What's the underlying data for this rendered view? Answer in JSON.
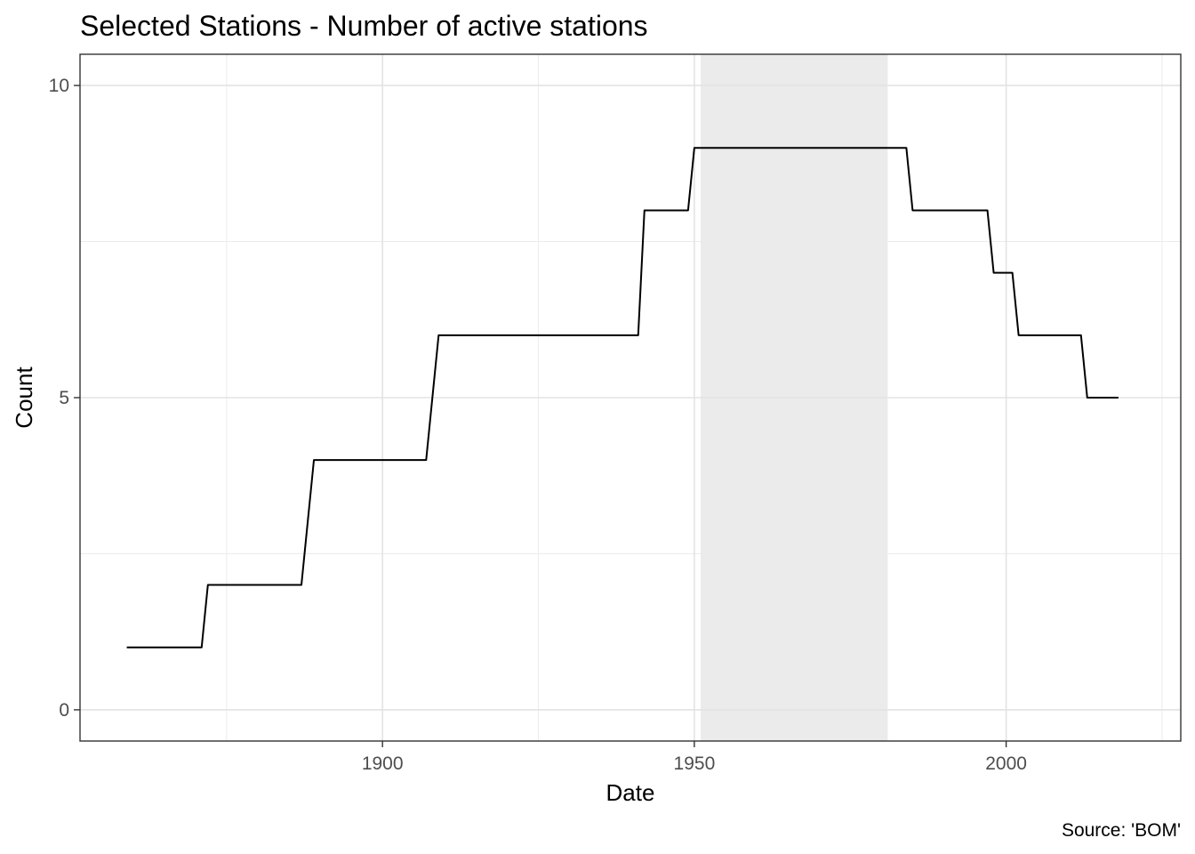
{
  "chart_data": {
    "type": "line",
    "title": "Selected Stations - Number of active stations",
    "xlabel": "Date",
    "ylabel": "Count",
    "caption": "Source: 'BOM'",
    "x_ticks": [
      1900,
      1950,
      2000
    ],
    "y_ticks": [
      0,
      5,
      10
    ],
    "xlim": [
      1851.5,
      2028
    ],
    "ylim": [
      -0.5,
      10.5
    ],
    "grid": true,
    "shaded_region": {
      "x": [
        1951,
        1981
      ],
      "color": "#ebebeb"
    },
    "series": [
      {
        "color": "#000000",
        "x": [
          1859,
          1871,
          1872,
          1887,
          1889,
          1907,
          1909,
          1941,
          1942,
          1949,
          1950,
          1984,
          1985,
          1997,
          1998,
          2001,
          2002,
          2012,
          2013,
          2018
        ],
        "y": [
          1,
          1,
          2,
          2,
          4,
          4,
          6,
          6,
          8,
          8,
          9,
          9,
          8,
          8,
          7,
          7,
          6,
          6,
          5,
          5
        ]
      }
    ]
  }
}
